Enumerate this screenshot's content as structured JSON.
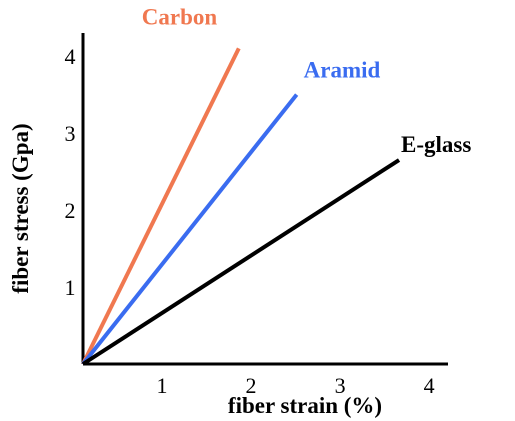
{
  "chart_data": {
    "type": "line",
    "title": "",
    "xlabel": "fiber strain (%)",
    "ylabel": "fiber stress (Gpa)",
    "xlim": [
      0,
      4.1
    ],
    "ylim": [
      0,
      4.3
    ],
    "x_ticks": [
      1,
      2,
      3,
      4
    ],
    "y_ticks": [
      1,
      2,
      3,
      4
    ],
    "grid": false,
    "legend": "inline labels at line ends",
    "series": [
      {
        "name": "Carbon",
        "color": "#f07850",
        "points": [
          [
            0,
            0
          ],
          [
            1.75,
            4.1
          ]
        ]
      },
      {
        "name": "Aramid",
        "color": "#3a6cf0",
        "points": [
          [
            0,
            0
          ],
          [
            2.4,
            3.5
          ]
        ]
      },
      {
        "name": "E-glass",
        "color": "#000000",
        "points": [
          [
            0,
            0
          ],
          [
            3.55,
            2.65
          ]
        ]
      }
    ]
  }
}
